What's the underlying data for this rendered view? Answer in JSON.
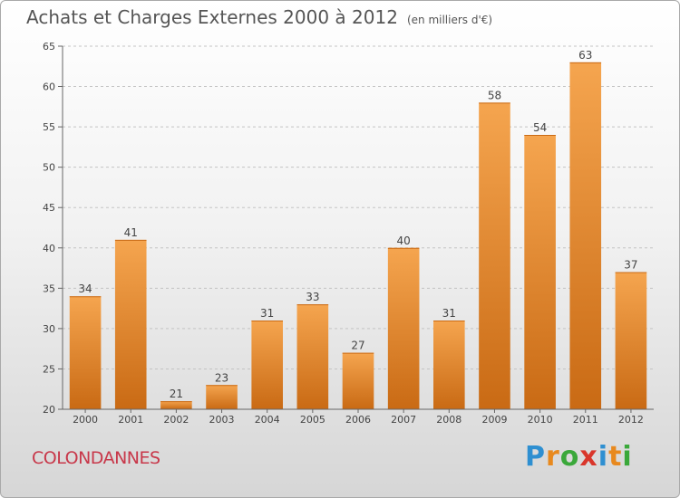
{
  "title": "Achats et Charges Externes 2000 à 2012",
  "unit": "(en milliers d'€)",
  "location": "COLONDANNES",
  "logo": {
    "letters": [
      "P",
      "r",
      "o",
      "x",
      "i",
      "t",
      "i"
    ],
    "colors": [
      "#2e8fd1",
      "#e8891e",
      "#3aa83a",
      "#d9362b",
      "#2e8fd1",
      "#e8891e",
      "#3aa83a"
    ]
  },
  "chart_data": {
    "type": "bar",
    "categories": [
      "2000",
      "2001",
      "2002",
      "2003",
      "2004",
      "2005",
      "2006",
      "2007",
      "2008",
      "2009",
      "2010",
      "2011",
      "2012"
    ],
    "values": [
      34,
      41,
      21,
      23,
      31,
      33,
      27,
      40,
      31,
      58,
      54,
      63,
      37
    ],
    "ylim": [
      20,
      65
    ],
    "yticks": [
      20,
      25,
      30,
      35,
      40,
      45,
      50,
      55,
      60,
      65
    ],
    "grid": "horizontal dashed",
    "bar_color_top": "#f5a54f",
    "bar_color_bottom": "#c96a14"
  }
}
